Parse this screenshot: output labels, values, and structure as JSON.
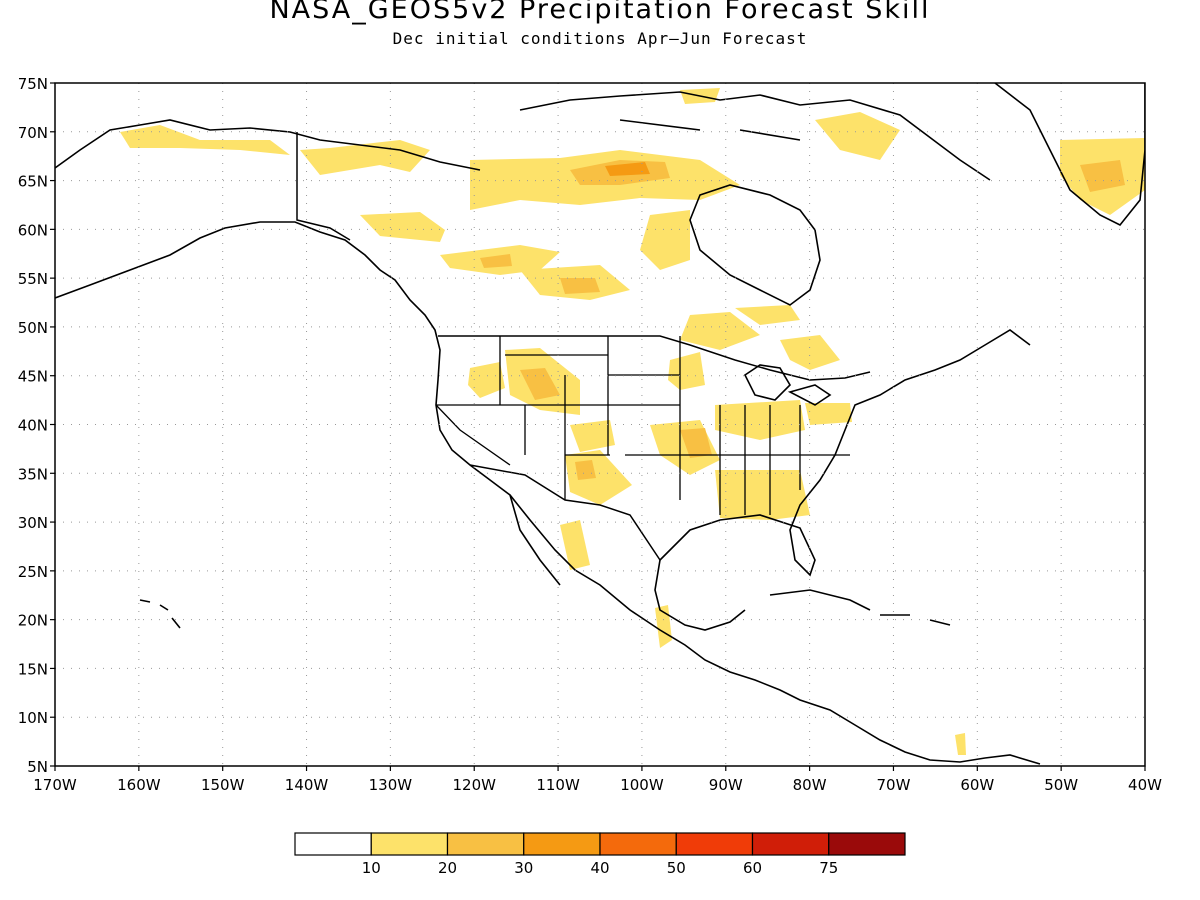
{
  "title": "NASA_GEOS5v2 Precipitation Forecast Skill",
  "subtitle": "Dec initial conditions  Apr–Jun Forecast",
  "map": {
    "lon_range": [
      -170,
      -40
    ],
    "lat_range": [
      5,
      75
    ],
    "lat_ticks": [
      "75N",
      "70N",
      "65N",
      "60N",
      "55N",
      "50N",
      "45N",
      "40N",
      "35N",
      "30N",
      "25N",
      "20N",
      "15N",
      "10N",
      "5N"
    ],
    "lon_ticks": [
      "170W",
      "160W",
      "150W",
      "140W",
      "130W",
      "120W",
      "110W",
      "100W",
      "90W",
      "80W",
      "70W",
      "60W",
      "50W",
      "40W"
    ],
    "grid": true,
    "colors": {
      "level_10_20": "#fde26a",
      "level_20_30": "#f8b43e",
      "level_30_40": "#f59a13",
      "coast": "#000000"
    }
  },
  "legend": {
    "labels": [
      "10",
      "20",
      "30",
      "40",
      "50",
      "60",
      "75"
    ],
    "colors": [
      "#ffffff",
      "#fde26a",
      "#f8c043",
      "#f59a13",
      "#f46a0c",
      "#f03c08",
      "#d01e08",
      "#9a0a0a"
    ]
  }
}
